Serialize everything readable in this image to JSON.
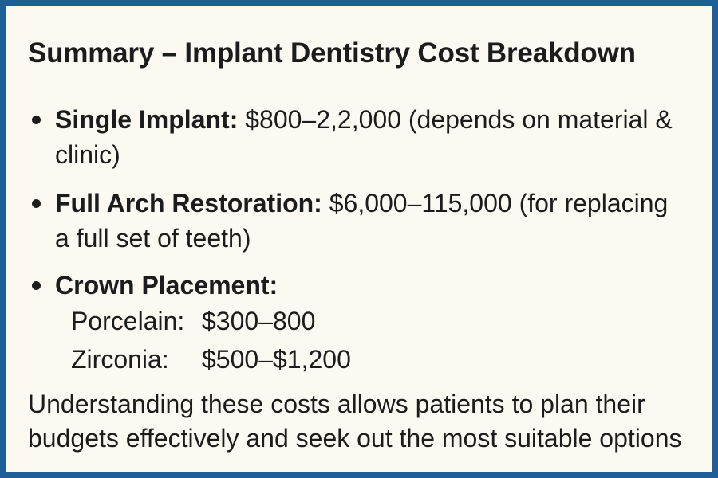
{
  "title": "Summary – Implant Dentistry Cost Breakdown",
  "items": [
    {
      "label": "Single Implant:",
      "text": " $800–2,2,000 (depends on material & clinic)"
    },
    {
      "label": "Full Arch Restoration:",
      "text": " $6,000–115,000 (for replacing a full set of teeth)"
    },
    {
      "label": "Crown Placement:",
      "text": "",
      "options": [
        {
          "name": "Porcelain:",
          "price": "$300–800"
        },
        {
          "name": "Zirconia:",
          "price": "$500–$1,200"
        }
      ]
    }
  ],
  "footer": "Understanding these costs allows patients to plan their budgets effectively and seek out the most suitable options",
  "colors": {
    "border": "#1f5f96",
    "background": "#fbf9f1",
    "text": "#1c1c1c"
  }
}
